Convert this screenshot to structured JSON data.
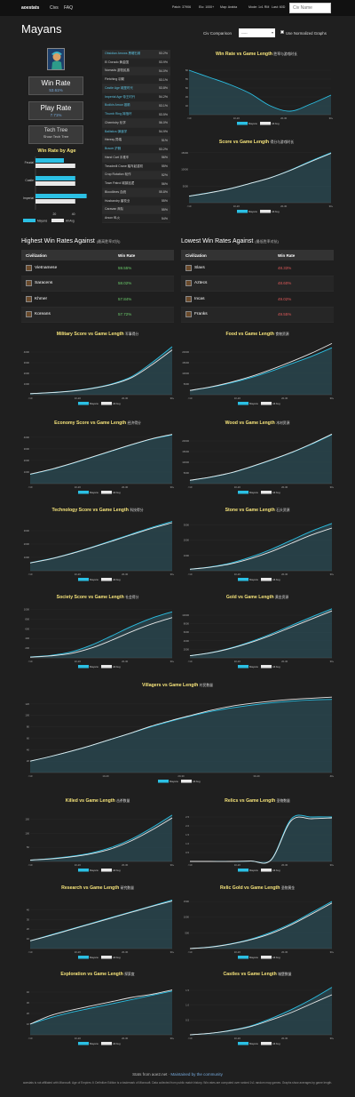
{
  "nav": {
    "brand": "aoestats",
    "links": [
      "Civs",
      "FAQ"
    ],
    "stats": [
      "Patch: 37906",
      "Elo: 1000+",
      "Map: Arabia",
      "Mode: 1v1 RM",
      "Last: 60D"
    ],
    "search_placeholder": "Civ Name"
  },
  "page": {
    "title": "Mayans"
  },
  "controls": {
    "compare_label": "Civ Comparison",
    "compare_value": "-----",
    "checkbox_label": "Use Normalized Graphs"
  },
  "stats": {
    "win_rate_label": "Win Rate",
    "win_rate_value": "53.61%",
    "play_rate_label": "Play Rate",
    "play_rate_value": "7.71%",
    "tech_tree_label": "Tech Tree",
    "tech_tree_sub": "Show Tech Tree"
  },
  "age_chart": {
    "title": "Win Rate by Age"
  },
  "techs": [
    {
      "name": "Obsidian Arrows 黑曜石箭",
      "val": "53.2%"
    },
    {
      "name": "El Dorado 黄金国",
      "val": "53.9%"
    },
    {
      "name": "Nomads 游牧民族",
      "val": "54.0%"
    },
    {
      "name": "Fletching 羽箭",
      "val": "53.1%"
    },
    {
      "name": "Castle Age 城堡时代",
      "val": "53.8%"
    },
    {
      "name": "Imperial Age 帝王时代",
      "val": "54.2%"
    },
    {
      "name": "Bodkin Arrow 锥箭",
      "val": "53.1%"
    },
    {
      "name": "Thumb Ring 拇指环",
      "val": "53.5%"
    },
    {
      "name": "Chemistry 化学",
      "val": "56.0%"
    },
    {
      "name": "Ballistics 弹道学",
      "val": "54.9%"
    },
    {
      "name": "Heresy 异端",
      "val": "51%"
    },
    {
      "name": "Bracer 护腕",
      "val": "53.2%"
    },
    {
      "name": "Hand Cart 手推车",
      "val": "56%"
    },
    {
      "name": "Treadmill Crane 踏车起重机",
      "val": "55%"
    },
    {
      "name": "Crop Rotation 轮作",
      "val": "52%"
    },
    {
      "name": "Town Patrol 城镇巡逻",
      "val": "56%"
    },
    {
      "name": "Bloodlines 血统",
      "val": "55.8%"
    },
    {
      "name": "Husbandry 畜牧业",
      "val": "55%"
    },
    {
      "name": "Caravan 商队",
      "val": "55%"
    },
    {
      "name": "Arson 纵火",
      "val": "54%"
    }
  ],
  "best": {
    "title": "Highest Win Rates Against",
    "title_cn": "(最高胜率对抗)",
    "col1": "Civilization",
    "col2": "Win Rate",
    "rows": [
      {
        "civ": "Vietnamese",
        "rate": "59.55%"
      },
      {
        "civ": "Saracens",
        "rate": "58.02%"
      },
      {
        "civ": "Khmer",
        "rate": "57.84%"
      },
      {
        "civ": "Koreans",
        "rate": "57.72%"
      }
    ]
  },
  "worst": {
    "title": "Lowest Win Rates Against",
    "title_cn": "(最低胜率对抗)",
    "col1": "Civilization",
    "col2": "Win Rate",
    "rows": [
      {
        "civ": "Slavs",
        "rate": "48.33%"
      },
      {
        "civ": "Aztecs",
        "rate": "48.60%"
      },
      {
        "civ": "Incas",
        "rate": "49.02%"
      },
      {
        "civ": "Franks",
        "rate": "49.55%"
      }
    ]
  },
  "legend": {
    "a": "Mayans",
    "b": "All Avg"
  },
  "colors": {
    "accent": "#2bc0e4",
    "avg": "#e8e8e8",
    "title": "#f5e37a"
  },
  "chart_data": [
    {
      "id": "age",
      "type": "bar",
      "title": "Win Rate by Age",
      "categories": [
        "Feudal",
        "Castle",
        "Imperial"
      ],
      "series": [
        {
          "name": "Mayans",
          "values": [
            30,
            42,
            54
          ]
        },
        {
          "name": "All Avg",
          "values": [
            42,
            42,
            42
          ]
        }
      ],
      "xlim": [
        0,
        60
      ],
      "ticks": [
        "20",
        "40"
      ]
    },
    {
      "id": "winrate",
      "type": "line",
      "title": "Win Rate vs Game Length",
      "title_cn": "胜率与游戏时长",
      "x": [
        0,
        1,
        2,
        3,
        4,
        5,
        6,
        7
      ],
      "series": [
        {
          "name": "Mayans",
          "values": [
            60,
            56,
            52,
            47,
            40,
            37,
            41,
            46
          ]
        }
      ],
      "ylim": [
        35,
        65
      ],
      "yticks": [
        "60",
        "55",
        "50",
        "45",
        "40"
      ],
      "xticks": [
        "<10",
        "10-20",
        "20-30",
        "30+"
      ]
    },
    {
      "id": "score",
      "type": "area",
      "title": "Score vs Game Length",
      "title_cn": "得分与游戏时长",
      "x": [
        0,
        1,
        2,
        3,
        4,
        5,
        6,
        7
      ],
      "series": [
        {
          "name": "Mayans",
          "values": [
            2000,
            3000,
            4200,
            5800,
            7500,
            9800,
            12500,
            15000
          ]
        },
        {
          "name": "All Avg",
          "values": [
            1950,
            2950,
            4150,
            5750,
            7450,
            9700,
            12300,
            14800
          ]
        }
      ],
      "ylim": [
        0,
        16000
      ],
      "yticks": [
        "15000",
        "10000",
        "5000"
      ],
      "xticks": [
        "<10",
        "10-20",
        "20-30",
        "30+"
      ]
    },
    {
      "id": "military",
      "type": "area",
      "title": "Military Score vs Game Length",
      "title_cn": "军事得分",
      "x": [
        0,
        1,
        2,
        3,
        4,
        5,
        6,
        7
      ],
      "series": [
        {
          "name": "Mayans",
          "values": [
            100,
            200,
            350,
            600,
            1000,
            1700,
            3000,
            4500
          ]
        },
        {
          "name": "All Avg",
          "values": [
            100,
            190,
            330,
            570,
            950,
            1600,
            2800,
            4200
          ]
        }
      ],
      "ylim": [
        0,
        5000
      ],
      "yticks": [
        "4000",
        "3000",
        "2000",
        "1000"
      ],
      "xticks": [
        "<10",
        "10-20",
        "20-30",
        "30+"
      ]
    },
    {
      "id": "food",
      "type": "area",
      "title": "Food vs Game Length",
      "title_cn": "食物资源",
      "x": [
        0,
        1,
        2,
        3,
        4,
        5,
        6,
        7
      ],
      "series": [
        {
          "name": "Mayans",
          "values": [
            2000,
            3500,
            5500,
            8000,
            11000,
            14500,
            18000,
            22000
          ]
        },
        {
          "name": "All Avg",
          "values": [
            2000,
            3600,
            5800,
            8500,
            11800,
            15500,
            19500,
            24000
          ]
        }
      ],
      "ylim": [
        0,
        25000
      ],
      "yticks": [
        "20000",
        "15000",
        "10000",
        "5000"
      ],
      "xticks": [
        "<10",
        "10-20",
        "20-30",
        "30+"
      ]
    },
    {
      "id": "economy",
      "type": "area",
      "title": "Economy Score vs Game Length",
      "title_cn": "经济得分",
      "x": [
        0,
        1,
        2,
        3,
        4,
        5,
        6,
        7
      ],
      "series": [
        {
          "name": "Mayans",
          "values": [
            800,
            1200,
            1700,
            2250,
            2800,
            3350,
            3850,
            4200
          ]
        },
        {
          "name": "All Avg",
          "values": [
            820,
            1220,
            1720,
            2270,
            2820,
            3370,
            3870,
            4250
          ]
        }
      ],
      "ylim": [
        0,
        4600
      ],
      "yticks": [
        "4000",
        "3000",
        "2000",
        "1000"
      ],
      "xticks": [
        "<10",
        "10-20",
        "20-30",
        "30+"
      ]
    },
    {
      "id": "wood",
      "type": "area",
      "title": "Wood vs Game Length",
      "title_cn": "木材资源",
      "x": [
        0,
        1,
        2,
        3,
        4,
        5,
        6,
        7
      ],
      "series": [
        {
          "name": "Mayans",
          "values": [
            1500,
            3000,
            5000,
            7800,
            11000,
            14500,
            18500,
            23000
          ]
        },
        {
          "name": "All Avg",
          "values": [
            1550,
            3050,
            5050,
            7900,
            11100,
            14600,
            18700,
            23200
          ]
        }
      ],
      "ylim": [
        0,
        25000
      ],
      "yticks": [
        "20000",
        "15000",
        "10000",
        "5000"
      ],
      "xticks": [
        "<10",
        "10-20",
        "20-30",
        "30+"
      ]
    },
    {
      "id": "tech",
      "type": "area",
      "title": "Technology Score vs Game Length",
      "title_cn": "科技得分",
      "x": [
        0,
        1,
        2,
        3,
        4,
        5,
        6,
        7
      ],
      "series": [
        {
          "name": "Mayans",
          "values": [
            600,
            900,
            1300,
            1750,
            2250,
            2750,
            3250,
            3700
          ]
        },
        {
          "name": "All Avg",
          "values": [
            580,
            880,
            1270,
            1720,
            2200,
            2700,
            3180,
            3600
          ]
        }
      ],
      "ylim": [
        0,
        4000
      ],
      "yticks": [
        "3000",
        "2000",
        "1000"
      ],
      "xticks": [
        "<10",
        "10-20",
        "20-30",
        "30+"
      ]
    },
    {
      "id": "stone",
      "type": "area",
      "title": "Stone vs Game Length",
      "title_cn": "石头资源",
      "x": [
        0,
        1,
        2,
        3,
        4,
        5,
        6,
        7
      ],
      "series": [
        {
          "name": "Mayans",
          "values": [
            100,
            250,
            500,
            900,
            1400,
            2000,
            2600,
            3100
          ]
        },
        {
          "name": "All Avg",
          "values": [
            100,
            230,
            450,
            800,
            1250,
            1800,
            2350,
            2800
          ]
        }
      ],
      "ylim": [
        0,
        3500
      ],
      "yticks": [
        "3000",
        "2000",
        "1000"
      ],
      "xticks": [
        "<10",
        "10-20",
        "20-30",
        "30+"
      ]
    },
    {
      "id": "society",
      "type": "area",
      "title": "Society Score vs Game Length",
      "title_cn": "社会得分",
      "x": [
        0,
        1,
        2,
        3,
        4,
        5,
        6,
        7
      ],
      "series": [
        {
          "name": "Mayans",
          "values": [
            20,
            50,
            120,
            260,
            450,
            650,
            820,
            950
          ]
        },
        {
          "name": "All Avg",
          "values": [
            15,
            40,
            90,
            200,
            360,
            540,
            700,
            830
          ]
        }
      ],
      "ylim": [
        0,
        1100
      ],
      "yticks": [
        "1000",
        "800",
        "600",
        "400",
        "200"
      ],
      "xticks": [
        "<10",
        "10-20",
        "20-30",
        "30+"
      ]
    },
    {
      "id": "gold",
      "type": "area",
      "title": "Gold vs Game Length",
      "title_cn": "黄金资源",
      "x": [
        0,
        1,
        2,
        3,
        4,
        5,
        6,
        7
      ],
      "series": [
        {
          "name": "Mayans",
          "values": [
            500,
            1200,
            2300,
            3800,
            5600,
            7600,
            9600,
            11500
          ]
        },
        {
          "name": "All Avg",
          "values": [
            500,
            1150,
            2200,
            3600,
            5300,
            7200,
            9100,
            11000
          ]
        }
      ],
      "ylim": [
        0,
        12500
      ],
      "yticks": [
        "10000",
        "8000",
        "6000",
        "4000",
        "2000"
      ],
      "xticks": [
        "<10",
        "10-20",
        "20-30",
        "30+"
      ]
    },
    {
      "id": "villagers",
      "type": "area",
      "title": "Villagers vs Game Length",
      "title_cn": "村民数量",
      "x": [
        0,
        1,
        2,
        3,
        4,
        5,
        6,
        7,
        8,
        9,
        10,
        11,
        12,
        13,
        14,
        15
      ],
      "series": [
        {
          "name": "Mayans",
          "values": [
            20,
            28,
            37,
            47,
            58,
            69,
            80,
            90,
            99,
            107,
            113,
            118,
            122,
            125,
            127,
            128
          ]
        },
        {
          "name": "All Avg",
          "values": [
            20,
            28,
            37,
            47,
            58,
            69,
            81,
            91,
            100,
            109,
            116,
            121,
            125,
            128,
            130,
            132
          ]
        }
      ],
      "ylim": [
        0,
        140
      ],
      "yticks": [
        "120",
        "100",
        "80",
        "60",
        "40",
        "20"
      ],
      "xticks": [
        "<10",
        "10-20",
        "20-30",
        "30-40",
        "40+"
      ]
    },
    {
      "id": "killed",
      "type": "area",
      "title": "Killed vs Game Length",
      "title_cn": "击杀数量",
      "x": [
        0,
        1,
        2,
        3,
        4,
        5,
        6,
        7
      ],
      "series": [
        {
          "name": "Mayans",
          "values": [
            5,
            10,
            18,
            30,
            50,
            80,
            120,
            165
          ]
        },
        {
          "name": "All Avg",
          "values": [
            5,
            9,
            16,
            27,
            45,
            74,
            112,
            155
          ]
        }
      ],
      "ylim": [
        0,
        190
      ],
      "yticks": [
        "150",
        "100",
        "50"
      ],
      "xticks": [
        "<10",
        "10-20",
        "20-30",
        "30+"
      ]
    },
    {
      "id": "relics",
      "type": "area",
      "title": "Relics vs Game Length",
      "title_cn": "圣物数量",
      "x": [
        0,
        1,
        2,
        3,
        4,
        5,
        6,
        7
      ],
      "series": [
        {
          "name": "Mayans",
          "values": [
            0,
            0,
            0,
            0.02,
            0.1,
            2.4,
            2.5,
            2.5
          ]
        },
        {
          "name": "All Avg",
          "values": [
            0,
            0,
            0,
            0.02,
            0.08,
            2.3,
            2.4,
            2.45
          ]
        }
      ],
      "ylim": [
        0,
        3
      ],
      "yticks": [
        "2.5",
        "2.0",
        "1.5",
        "1.0",
        "0.5"
      ],
      "xticks": [
        "<10",
        "10-20",
        "20-30",
        "30+"
      ]
    },
    {
      "id": "research",
      "type": "area",
      "title": "Research vs Game Length",
      "title_cn": "研究数量",
      "x": [
        0,
        1,
        2,
        3,
        4,
        5,
        6,
        7
      ],
      "series": [
        {
          "name": "Mayans",
          "values": [
            8,
            14,
            20,
            26,
            32,
            38,
            44,
            50
          ]
        },
        {
          "name": "All Avg",
          "values": [
            8,
            13.5,
            19.5,
            25.5,
            31.5,
            37.5,
            43.5,
            49
          ]
        }
      ],
      "ylim": [
        0,
        55
      ],
      "yticks": [
        "40",
        "30",
        "20",
        "10"
      ],
      "xticks": [
        "<10",
        "10-20",
        "20-30",
        "30+"
      ]
    },
    {
      "id": "relicgold",
      "type": "area",
      "title": "Relic Gold vs Game Length",
      "title_cn": "圣物黄金",
      "x": [
        0,
        1,
        2,
        3,
        4,
        5,
        6,
        7
      ],
      "series": [
        {
          "name": "Mayans",
          "values": [
            0,
            50,
            150,
            300,
            520,
            800,
            1150,
            1500
          ]
        },
        {
          "name": "All Avg",
          "values": [
            0,
            45,
            140,
            280,
            480,
            760,
            1100,
            1450
          ]
        }
      ],
      "ylim": [
        0,
        1700
      ],
      "yticks": [
        "1500",
        "1000",
        "500"
      ],
      "xticks": [
        "<10",
        "10-20",
        "20-30",
        "30+"
      ]
    },
    {
      "id": "exploration",
      "type": "area",
      "title": "Exploration vs Game Length",
      "title_cn": "探索度",
      "x": [
        0,
        1,
        2,
        3,
        4,
        5,
        6,
        7
      ],
      "series": [
        {
          "name": "Mayans",
          "values": [
            10,
            16,
            21,
            25,
            29,
            33,
            37,
            41
          ]
        },
        {
          "name": "All Avg",
          "values": [
            10,
            18,
            23,
            27,
            31,
            35,
            38,
            42
          ]
        }
      ],
      "ylim": [
        0,
        50
      ],
      "yticks": [
        "40",
        "30",
        "20",
        "10"
      ],
      "xticks": [
        "<10",
        "10-20",
        "20-30",
        "30+"
      ]
    },
    {
      "id": "castles",
      "type": "area",
      "title": "Castles vs Game Length",
      "title_cn": "城堡数量",
      "x": [
        0,
        1,
        2,
        3,
        4,
        5,
        6,
        7
      ],
      "series": [
        {
          "name": "Mayans",
          "values": [
            0,
            0.05,
            0.15,
            0.3,
            0.55,
            0.85,
            1.2,
            1.6
          ]
        },
        {
          "name": "All Avg",
          "values": [
            0,
            0.05,
            0.14,
            0.28,
            0.5,
            0.75,
            1.05,
            1.35
          ]
        }
      ],
      "ylim": [
        0,
        1.8
      ],
      "yticks": [
        "1.5",
        "1.0",
        "0.5"
      ],
      "xticks": [
        "<10",
        "10-20",
        "20-30",
        "30+"
      ]
    }
  ],
  "footer": {
    "line1": "Stats from aoe2.net",
    "line1_link": "Maintained by the community",
    "line2": "aoestats is not affiliated with Microsoft. Age of Empires II: Definitive Edition is a trademark of Microsoft. Data collected from public match history. Win rates are computed over ranked 1v1 random map games. Graphs show averages by game length."
  }
}
